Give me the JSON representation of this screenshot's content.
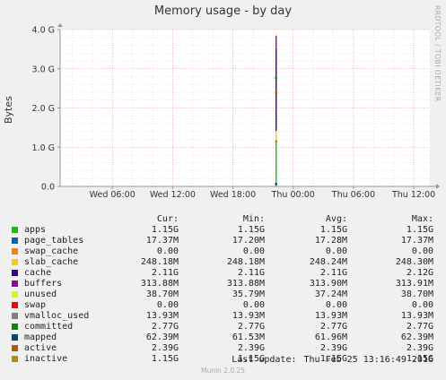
{
  "chart_data": {
    "type": "line",
    "title": "Memory usage - by day",
    "ylabel": "Bytes",
    "side_label": "RRDTOOL / TOBI OETIKER",
    "ylim": [
      0,
      4.0
    ],
    "y_ticks": [
      "0.0",
      "1.0 G",
      "2.0 G",
      "3.0 G",
      "4.0 G"
    ],
    "x_ticks": [
      "Wed 06:00",
      "Wed 12:00",
      "Wed 18:00",
      "Thu 00:00",
      "Thu 06:00",
      "Thu 12:00"
    ],
    "x_tick_hours": [
      6,
      12,
      18,
      24,
      30,
      36
    ],
    "x_range_hours": [
      0.8,
      37.6
    ],
    "data_x_hours": 22.3,
    "stack": [
      {
        "name": "apps",
        "color": "#00cc00",
        "value": 1.15
      },
      {
        "name": "page_tables",
        "color": "#0066b3",
        "value": 0.01737
      },
      {
        "name": "swap_cache",
        "color": "#ff8000",
        "value": 0.0
      },
      {
        "name": "slab_cache",
        "color": "#ffcc00",
        "value": 0.24818
      },
      {
        "name": "cache",
        "color": "#330099",
        "value": 2.11
      },
      {
        "name": "buffers",
        "color": "#990099",
        "value": 0.31388
      },
      {
        "name": "unused",
        "color": "#ccff00",
        "value": 0.0387
      },
      {
        "name": "swap",
        "color": "#ff0000",
        "value": 0.0
      }
    ],
    "markers": [
      {
        "name": "committed",
        "color": "#008f00",
        "value": 2.77
      },
      {
        "name": "mapped",
        "color": "#00487d",
        "value": 0.06239
      },
      {
        "name": "active",
        "color": "#b35a00",
        "value": 2.39
      },
      {
        "name": "inactive",
        "color": "#b38f00",
        "value": 1.15
      }
    ],
    "grid": true
  },
  "legend": {
    "headers": [
      "Cur:",
      "Min:",
      "Avg:",
      "Max:"
    ],
    "rows": [
      {
        "name": "apps",
        "color": "#00cc00",
        "cur": "1.15G",
        "min": "1.15G",
        "avg": "1.15G",
        "max": "1.15G"
      },
      {
        "name": "page_tables",
        "color": "#0066b3",
        "cur": "17.37M",
        "min": "17.20M",
        "avg": "17.28M",
        "max": "17.37M"
      },
      {
        "name": "swap_cache",
        "color": "#ff8000",
        "cur": "0.00",
        "min": "0.00",
        "avg": "0.00",
        "max": "0.00"
      },
      {
        "name": "slab_cache",
        "color": "#ffcc00",
        "cur": "248.18M",
        "min": "248.18M",
        "avg": "248.24M",
        "max": "248.30M"
      },
      {
        "name": "cache",
        "color": "#330099",
        "cur": "2.11G",
        "min": "2.11G",
        "avg": "2.11G",
        "max": "2.12G"
      },
      {
        "name": "buffers",
        "color": "#990099",
        "cur": "313.88M",
        "min": "313.88M",
        "avg": "313.90M",
        "max": "313.91M"
      },
      {
        "name": "unused",
        "color": "#ccff00",
        "cur": "38.70M",
        "min": "35.79M",
        "avg": "37.24M",
        "max": "38.70M"
      },
      {
        "name": "swap",
        "color": "#ff0000",
        "cur": "0.00",
        "min": "0.00",
        "avg": "0.00",
        "max": "0.00"
      },
      {
        "name": "vmalloc_used",
        "color": "#808080",
        "cur": "13.93M",
        "min": "13.93M",
        "avg": "13.93M",
        "max": "13.93M"
      },
      {
        "name": "committed",
        "color": "#008f00",
        "cur": "2.77G",
        "min": "2.77G",
        "avg": "2.77G",
        "max": "2.77G"
      },
      {
        "name": "mapped",
        "color": "#00487d",
        "cur": "62.39M",
        "min": "61.53M",
        "avg": "61.96M",
        "max": "62.39M"
      },
      {
        "name": "active",
        "color": "#b35a00",
        "cur": "2.39G",
        "min": "2.39G",
        "avg": "2.39G",
        "max": "2.39G"
      },
      {
        "name": "inactive",
        "color": "#b38f00",
        "cur": "1.15G",
        "min": "1.15G",
        "avg": "1.15G",
        "max": "1.15G"
      }
    ]
  },
  "last_update": {
    "label": "Last update:",
    "value": "Thu Feb 25 13:16:49 2016"
  },
  "footer": "Munin 2.0.25"
}
